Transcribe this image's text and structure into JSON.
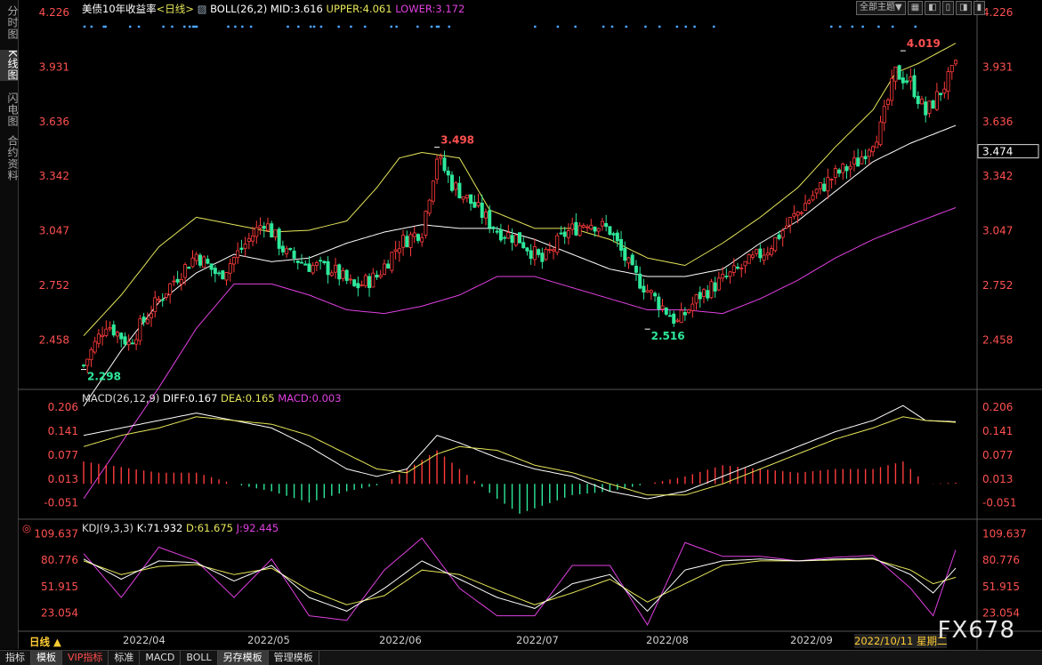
{
  "sidebar": {
    "tabs": [
      "分时图",
      "K线图",
      "闪电图",
      "合约资料"
    ]
  },
  "toolbar": {
    "theme_label": "全部主题▼",
    "buttons": [
      "▦",
      "◧",
      "▯",
      "◨",
      "▮"
    ]
  },
  "main_panel": {
    "title": "美债10年收益率",
    "period": "<日线>",
    "indicator": "BOLL(26,2)",
    "mid_label": "MID:3.616",
    "upper_label": "UPPER:4.061",
    "lower_label": "LOWER:3.172",
    "current_price": "3.474",
    "high_label": "3.498",
    "high2_label": "4.019",
    "low_label": "2.298",
    "low2_label": "2.516"
  },
  "macd_panel": {
    "title": "MACD(26,12,9)",
    "diff_label": "DIFF:0.167",
    "dea_label": "DEA:0.165",
    "macd_label": "MACD:0.003"
  },
  "kdj_panel": {
    "title": "KDJ(9,3,3)",
    "k_label": "K:71.932",
    "d_label": "D:61.675",
    "j_label": "J:92.445"
  },
  "x_axis": {
    "period_button": "日线 ▲",
    "months": [
      "2022/04",
      "2022/05",
      "2022/06",
      "2022/07",
      "2022/08",
      "2022/09"
    ],
    "cursor_date": "2022/10/11 星期二"
  },
  "footer": {
    "tabs": [
      "指标",
      "模板",
      "VIP指标",
      "标准",
      "MACD",
      "BOLL",
      "另存模板",
      "管理模板"
    ]
  },
  "watermark": "FX678",
  "colors": {
    "up": "#ff3b3b",
    "down": "#2ee89a",
    "upper": "#e6e65a",
    "mid": "#ffffff",
    "lower": "#e040e0",
    "k": "#ffffff",
    "d": "#e6e65a",
    "j": "#e040e0"
  },
  "chart_data": [
    {
      "type": "candlestick",
      "title": "美债10年收益率",
      "y_ticks": [
        2.458,
        2.752,
        3.047,
        3.342,
        3.636,
        3.931,
        4.226
      ],
      "ylim": [
        2.2,
        4.226
      ],
      "close_path": [
        [
          0,
          2.32
        ],
        [
          6,
          2.55
        ],
        [
          12,
          2.44
        ],
        [
          18,
          2.62
        ],
        [
          24,
          2.78
        ],
        [
          30,
          2.92
        ],
        [
          36,
          2.8
        ],
        [
          42,
          2.95
        ],
        [
          48,
          3.1
        ],
        [
          54,
          2.92
        ],
        [
          60,
          2.86
        ],
        [
          66,
          2.84
        ],
        [
          72,
          2.74
        ],
        [
          78,
          2.8
        ],
        [
          84,
          2.98
        ],
        [
          90,
          3.05
        ],
        [
          94,
          3.45
        ],
        [
          98,
          3.3
        ],
        [
          104,
          3.18
        ],
        [
          110,
          3.05
        ],
        [
          116,
          3.0
        ],
        [
          122,
          2.88
        ],
        [
          128,
          3.03
        ],
        [
          134,
          3.1
        ],
        [
          140,
          3.05
        ],
        [
          146,
          2.82
        ],
        [
          152,
          2.68
        ],
        [
          158,
          2.55
        ],
        [
          164,
          2.7
        ],
        [
          170,
          2.78
        ],
        [
          176,
          2.86
        ],
        [
          182,
          2.95
        ],
        [
          188,
          3.1
        ],
        [
          194,
          3.24
        ],
        [
          200,
          3.35
        ],
        [
          206,
          3.42
        ],
        [
          212,
          3.6
        ],
        [
          216,
          3.9
        ],
        [
          220,
          3.85
        ],
        [
          224,
          3.68
        ],
        [
          228,
          3.8
        ],
        [
          232,
          3.93
        ]
      ],
      "upper_path": [
        [
          0,
          2.48
        ],
        [
          10,
          2.7
        ],
        [
          20,
          2.96
        ],
        [
          30,
          3.12
        ],
        [
          40,
          3.08
        ],
        [
          50,
          3.04
        ],
        [
          60,
          3.05
        ],
        [
          70,
          3.1
        ],
        [
          78,
          3.28
        ],
        [
          84,
          3.44
        ],
        [
          90,
          3.47
        ],
        [
          100,
          3.44
        ],
        [
          108,
          3.16
        ],
        [
          120,
          3.06
        ],
        [
          130,
          3.06
        ],
        [
          140,
          3.0
        ],
        [
          150,
          2.9
        ],
        [
          160,
          2.86
        ],
        [
          170,
          2.98
        ],
        [
          180,
          3.12
        ],
        [
          190,
          3.28
        ],
        [
          200,
          3.5
        ],
        [
          210,
          3.7
        ],
        [
          216,
          3.9
        ],
        [
          222,
          3.95
        ],
        [
          232,
          4.06
        ]
      ],
      "mid_path": [
        [
          0,
          2.1
        ],
        [
          10,
          2.4
        ],
        [
          20,
          2.66
        ],
        [
          30,
          2.82
        ],
        [
          40,
          2.92
        ],
        [
          50,
          2.88
        ],
        [
          60,
          2.9
        ],
        [
          70,
          2.98
        ],
        [
          80,
          3.04
        ],
        [
          90,
          3.08
        ],
        [
          100,
          3.06
        ],
        [
          110,
          3.06
        ],
        [
          120,
          3.0
        ],
        [
          130,
          2.92
        ],
        [
          140,
          2.84
        ],
        [
          150,
          2.8
        ],
        [
          160,
          2.8
        ],
        [
          170,
          2.84
        ],
        [
          180,
          2.98
        ],
        [
          190,
          3.1
        ],
        [
          200,
          3.26
        ],
        [
          210,
          3.42
        ],
        [
          220,
          3.52
        ],
        [
          232,
          3.616
        ]
      ],
      "lower_path": [
        [
          0,
          1.6
        ],
        [
          20,
          2.2
        ],
        [
          30,
          2.52
        ],
        [
          40,
          2.76
        ],
        [
          50,
          2.76
        ],
        [
          60,
          2.7
        ],
        [
          70,
          2.62
        ],
        [
          80,
          2.6
        ],
        [
          90,
          2.64
        ],
        [
          100,
          2.7
        ],
        [
          110,
          2.8
        ],
        [
          120,
          2.8
        ],
        [
          130,
          2.74
        ],
        [
          140,
          2.68
        ],
        [
          150,
          2.62
        ],
        [
          160,
          2.62
        ],
        [
          170,
          2.6
        ],
        [
          180,
          2.68
        ],
        [
          190,
          2.78
        ],
        [
          200,
          2.9
        ],
        [
          210,
          3.0
        ],
        [
          220,
          3.08
        ],
        [
          232,
          3.172
        ]
      ],
      "markers": [
        {
          "x": 0,
          "y": 2.298
        },
        {
          "x": 94,
          "y": 3.498
        },
        {
          "x": 150,
          "y": 2.516
        },
        {
          "x": 218,
          "y": 4.019
        }
      ]
    },
    {
      "type": "bar",
      "title": "MACD(26,12,9)",
      "y_ticks": [
        0.206,
        0.141,
        0.077,
        0.013,
        -0.051
      ],
      "ylim": [
        -0.09,
        0.22
      ],
      "diff_path": [
        [
          0,
          0.13
        ],
        [
          10,
          0.15
        ],
        [
          20,
          0.17
        ],
        [
          30,
          0.19
        ],
        [
          40,
          0.17
        ],
        [
          50,
          0.15
        ],
        [
          60,
          0.1
        ],
        [
          70,
          0.04
        ],
        [
          78,
          0.02
        ],
        [
          86,
          0.04
        ],
        [
          94,
          0.13
        ],
        [
          100,
          0.11
        ],
        [
          110,
          0.07
        ],
        [
          120,
          0.04
        ],
        [
          130,
          0.02
        ],
        [
          140,
          -0.02
        ],
        [
          150,
          -0.04
        ],
        [
          160,
          -0.02
        ],
        [
          170,
          0.02
        ],
        [
          180,
          0.06
        ],
        [
          190,
          0.1
        ],
        [
          200,
          0.14
        ],
        [
          210,
          0.17
        ],
        [
          218,
          0.21
        ],
        [
          224,
          0.17
        ],
        [
          232,
          0.167
        ]
      ],
      "dea_path": [
        [
          0,
          0.1
        ],
        [
          10,
          0.13
        ],
        [
          20,
          0.15
        ],
        [
          30,
          0.18
        ],
        [
          40,
          0.17
        ],
        [
          50,
          0.16
        ],
        [
          60,
          0.13
        ],
        [
          70,
          0.08
        ],
        [
          78,
          0.04
        ],
        [
          86,
          0.03
        ],
        [
          94,
          0.08
        ],
        [
          100,
          0.1
        ],
        [
          110,
          0.09
        ],
        [
          120,
          0.05
        ],
        [
          130,
          0.03
        ],
        [
          140,
          0.0
        ],
        [
          150,
          -0.03
        ],
        [
          160,
          -0.03
        ],
        [
          170,
          0.0
        ],
        [
          180,
          0.04
        ],
        [
          190,
          0.08
        ],
        [
          200,
          0.12
        ],
        [
          210,
          0.15
        ],
        [
          218,
          0.18
        ],
        [
          224,
          0.17
        ],
        [
          232,
          0.165
        ]
      ],
      "hist_path": [
        [
          0,
          0.06
        ],
        [
          20,
          0.03
        ],
        [
          30,
          0.03
        ],
        [
          40,
          0.0
        ],
        [
          50,
          -0.02
        ],
        [
          60,
          -0.05
        ],
        [
          70,
          -0.02
        ],
        [
          80,
          0.0
        ],
        [
          94,
          0.09
        ],
        [
          100,
          0.04
        ],
        [
          110,
          -0.04
        ],
        [
          116,
          -0.08
        ],
        [
          130,
          -0.03
        ],
        [
          140,
          -0.02
        ],
        [
          150,
          0.0
        ],
        [
          160,
          0.02
        ],
        [
          170,
          0.05
        ],
        [
          180,
          0.04
        ],
        [
          190,
          0.03
        ],
        [
          200,
          0.04
        ],
        [
          210,
          0.04
        ],
        [
          218,
          0.06
        ],
        [
          224,
          0.0
        ],
        [
          232,
          0.003
        ]
      ]
    },
    {
      "type": "line",
      "title": "KDJ(9,3,3)",
      "y_ticks": [
        109.637,
        80.776,
        51.915,
        23.054
      ],
      "ylim": [
        5,
        112
      ],
      "k_path": [
        [
          0,
          82
        ],
        [
          10,
          60
        ],
        [
          20,
          80
        ],
        [
          30,
          78
        ],
        [
          40,
          58
        ],
        [
          50,
          75
        ],
        [
          60,
          40
        ],
        [
          70,
          25
        ],
        [
          80,
          50
        ],
        [
          90,
          80
        ],
        [
          100,
          60
        ],
        [
          110,
          40
        ],
        [
          120,
          28
        ],
        [
          130,
          55
        ],
        [
          140,
          65
        ],
        [
          150,
          25
        ],
        [
          160,
          70
        ],
        [
          170,
          80
        ],
        [
          180,
          82
        ],
        [
          190,
          80
        ],
        [
          200,
          82
        ],
        [
          210,
          83
        ],
        [
          220,
          65
        ],
        [
          226,
          45
        ],
        [
          232,
          72
        ]
      ],
      "d_path": [
        [
          0,
          80
        ],
        [
          10,
          65
        ],
        [
          20,
          74
        ],
        [
          30,
          76
        ],
        [
          40,
          65
        ],
        [
          50,
          72
        ],
        [
          60,
          48
        ],
        [
          70,
          32
        ],
        [
          80,
          42
        ],
        [
          90,
          70
        ],
        [
          100,
          65
        ],
        [
          110,
          48
        ],
        [
          120,
          32
        ],
        [
          130,
          45
        ],
        [
          140,
          60
        ],
        [
          150,
          35
        ],
        [
          160,
          55
        ],
        [
          170,
          75
        ],
        [
          180,
          80
        ],
        [
          190,
          80
        ],
        [
          200,
          81
        ],
        [
          210,
          82
        ],
        [
          220,
          70
        ],
        [
          226,
          55
        ],
        [
          232,
          62
        ]
      ],
      "j_path": [
        [
          0,
          88
        ],
        [
          10,
          40
        ],
        [
          20,
          95
        ],
        [
          30,
          80
        ],
        [
          40,
          40
        ],
        [
          50,
          82
        ],
        [
          60,
          20
        ],
        [
          70,
          15
        ],
        [
          80,
          70
        ],
        [
          90,
          105
        ],
        [
          100,
          50
        ],
        [
          110,
          20
        ],
        [
          120,
          20
        ],
        [
          130,
          75
        ],
        [
          140,
          75
        ],
        [
          150,
          10
        ],
        [
          160,
          100
        ],
        [
          170,
          85
        ],
        [
          180,
          85
        ],
        [
          190,
          80
        ],
        [
          200,
          84
        ],
        [
          210,
          86
        ],
        [
          220,
          50
        ],
        [
          226,
          20
        ],
        [
          232,
          92
        ]
      ]
    }
  ]
}
